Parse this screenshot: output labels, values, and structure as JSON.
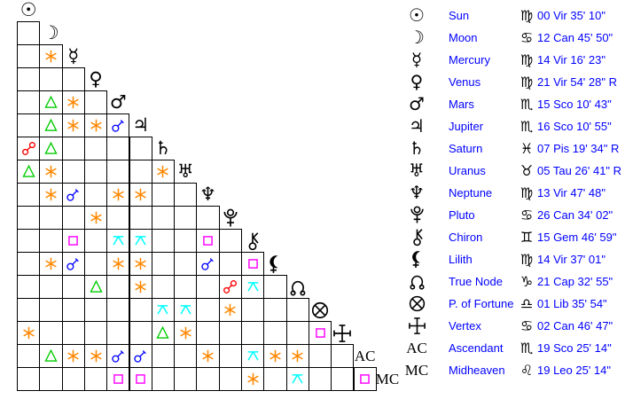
{
  "page_background": "#ffffff",
  "legend_text_color": "#0000ff",
  "glyph_color": "#000000",
  "grid_line_color": "#000000",
  "aspect_colors": {
    "conjunction": "#0000ff",
    "sextile": "#ff8800",
    "square": "#ff00ff",
    "trine": "#00cc00",
    "opposition": "#ff0000",
    "quincunx": "#00ffff"
  },
  "chart_data": {
    "type": "table",
    "title": "Astrological aspect grid with planetary positions",
    "points": [
      "Sun",
      "Moon",
      "Mercury",
      "Venus",
      "Mars",
      "Jupiter",
      "Saturn",
      "Uranus",
      "Neptune",
      "Pluto",
      "Chiron",
      "Lilith",
      "True Node",
      "P. of Fortune",
      "Vertex",
      "AC",
      "MC"
    ],
    "aspect_rows": [
      {
        "point": "Moon",
        "aspects": [
          null
        ]
      },
      {
        "point": "Mercury",
        "aspects": [
          null,
          "sextile"
        ]
      },
      {
        "point": "Venus",
        "aspects": [
          null,
          null,
          null
        ]
      },
      {
        "point": "Mars",
        "aspects": [
          null,
          "trine",
          "sextile",
          null
        ]
      },
      {
        "point": "Jupiter",
        "aspects": [
          null,
          "trine",
          "sextile",
          "sextile",
          "conjunction"
        ]
      },
      {
        "point": "Saturn",
        "aspects": [
          "opposition",
          "trine",
          null,
          null,
          null,
          null
        ]
      },
      {
        "point": "Uranus",
        "aspects": [
          "trine",
          "sextile",
          null,
          null,
          null,
          null,
          "sextile"
        ]
      },
      {
        "point": "Neptune",
        "aspects": [
          null,
          "sextile",
          "conjunction",
          null,
          "sextile",
          "sextile",
          null,
          null
        ]
      },
      {
        "point": "Pluto",
        "aspects": [
          null,
          null,
          null,
          "sextile",
          null,
          null,
          null,
          null,
          null
        ]
      },
      {
        "point": "Chiron",
        "aspects": [
          null,
          null,
          "square",
          null,
          "quincunx",
          "quincunx",
          null,
          null,
          "square",
          null
        ]
      },
      {
        "point": "Lilith",
        "aspects": [
          null,
          "sextile",
          "conjunction",
          null,
          "sextile",
          "sextile",
          null,
          null,
          "conjunction",
          null,
          "square"
        ]
      },
      {
        "point": "True Node",
        "aspects": [
          null,
          null,
          null,
          "trine",
          null,
          "sextile",
          null,
          null,
          null,
          "opposition",
          "quincunx",
          null
        ]
      },
      {
        "point": "P. of Fortune",
        "aspects": [
          null,
          null,
          null,
          null,
          null,
          null,
          "quincunx",
          "quincunx",
          null,
          "sextile",
          null,
          null,
          null
        ]
      },
      {
        "point": "Vertex",
        "aspects": [
          "sextile",
          null,
          null,
          null,
          null,
          null,
          "trine",
          "sextile",
          null,
          null,
          null,
          null,
          null,
          "square"
        ]
      },
      {
        "point": "AC",
        "aspects": [
          null,
          "trine",
          "sextile",
          "sextile",
          "conjunction",
          "conjunction",
          null,
          null,
          "sextile",
          null,
          "quincunx",
          "sextile",
          "sextile",
          null,
          null
        ]
      },
      {
        "point": "MC",
        "aspects": [
          null,
          null,
          null,
          null,
          "square",
          "square",
          null,
          null,
          null,
          null,
          "sextile",
          null,
          "quincunx",
          null,
          null,
          "square"
        ]
      }
    ],
    "positions": [
      {
        "id": "sun",
        "name": "Sun",
        "sign": "Vir",
        "position": "00 Vir 35' 10\""
      },
      {
        "id": "moon",
        "name": "Moon",
        "sign": "Can",
        "position": "12 Can 45' 50\""
      },
      {
        "id": "mercury",
        "name": "Mercury",
        "sign": "Vir",
        "position": "14 Vir 16' 23\""
      },
      {
        "id": "venus",
        "name": "Venus",
        "sign": "Vir",
        "position": "21 Vir 54' 28\" R"
      },
      {
        "id": "mars",
        "name": "Mars",
        "sign": "Sco",
        "position": "15 Sco 10' 43\""
      },
      {
        "id": "jupiter",
        "name": "Jupiter",
        "sign": "Sco",
        "position": "16 Sco 10' 55\""
      },
      {
        "id": "saturn",
        "name": "Saturn",
        "sign": "Pis",
        "position": "07 Pis 19' 34\" R"
      },
      {
        "id": "uranus",
        "name": "Uranus",
        "sign": "Tau",
        "position": "05 Tau 26' 41\" R"
      },
      {
        "id": "neptune",
        "name": "Neptune",
        "sign": "Vir",
        "position": "13 Vir 47' 48\""
      },
      {
        "id": "pluto",
        "name": "Pluto",
        "sign": "Can",
        "position": "26 Can 34' 02\""
      },
      {
        "id": "chiron",
        "name": "Chiron",
        "sign": "Gem",
        "position": "15 Gem 46' 59\""
      },
      {
        "id": "lilith",
        "name": "Lilith",
        "sign": "Vir",
        "position": "14 Vir 37' 01\""
      },
      {
        "id": "node",
        "name": "True Node",
        "sign": "Cap",
        "position": "21 Cap 32' 55\""
      },
      {
        "id": "fortune",
        "name": "P. of Fortune",
        "sign": "Lib",
        "position": "01 Lib 35' 54\""
      },
      {
        "id": "vertex",
        "name": "Vertex",
        "sign": "Can",
        "position": "02 Can 46' 47\""
      },
      {
        "id": "ac",
        "prefix": "AC",
        "name": "Ascendant",
        "sign": "Sco",
        "position": "19 Sco 25' 14\""
      },
      {
        "id": "mc",
        "prefix": "MC",
        "name": "Midheaven",
        "sign": "Leo",
        "position": "19 Leo 25' 14\""
      }
    ]
  }
}
